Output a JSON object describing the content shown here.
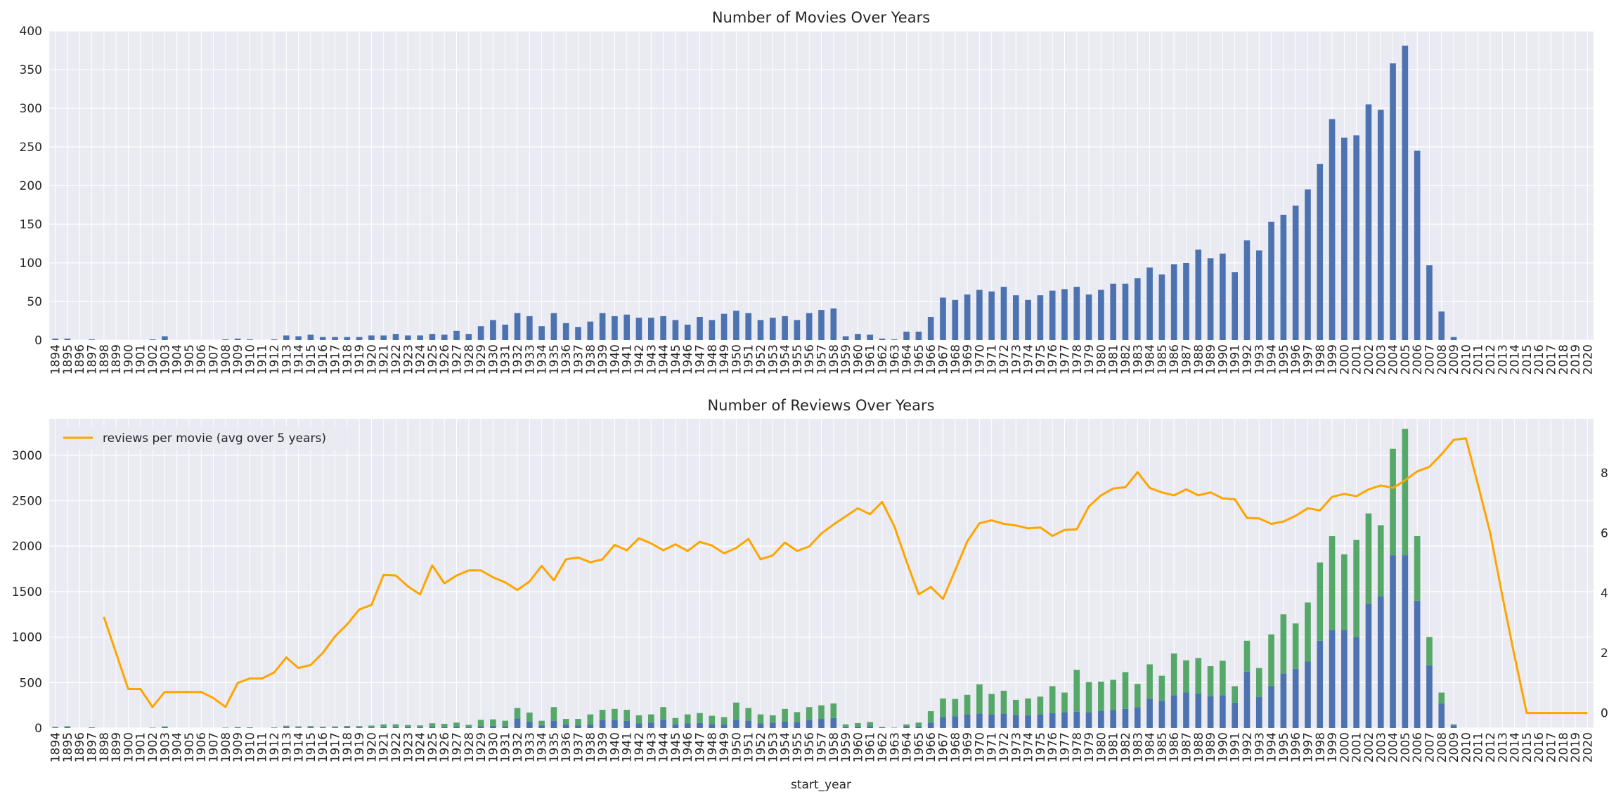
{
  "colors": {
    "background": "#eaeaf2",
    "blue": "#4c72b0",
    "green": "#55a868",
    "orange": "#ffa500",
    "grid": "#ffffff"
  },
  "chart_data": [
    {
      "type": "bar",
      "title": "Number of Movies Over Years",
      "xlabel": "",
      "ylabel": "",
      "ylim": [
        0,
        400
      ],
      "yticks": [
        0,
        50,
        100,
        150,
        200,
        250,
        300,
        350,
        400
      ],
      "grid": true,
      "x_start": 1894,
      "x_end": 2020,
      "values": [
        2,
        2,
        0,
        1,
        0,
        0,
        0,
        0,
        1,
        5,
        0,
        0,
        0,
        0,
        1,
        2,
        1,
        0,
        1,
        6,
        5,
        7,
        4,
        4,
        4,
        4,
        6,
        6,
        8,
        6,
        6,
        8,
        7,
        12,
        8,
        18,
        26,
        20,
        35,
        31,
        18,
        35,
        22,
        17,
        24,
        35,
        31,
        33,
        29,
        29,
        31,
        26,
        20,
        30,
        26,
        34,
        38,
        35,
        26,
        29,
        31,
        26,
        35,
        39,
        41,
        5,
        8,
        7,
        2,
        1,
        11,
        11,
        30,
        55,
        52,
        59,
        65,
        63,
        69,
        58,
        52,
        58,
        64,
        66,
        69,
        59,
        65,
        73,
        73,
        80,
        94,
        85,
        98,
        100,
        117,
        106,
        112,
        88,
        129,
        116,
        153,
        162,
        174,
        195,
        228,
        286,
        262,
        265,
        305,
        298,
        358,
        381,
        245,
        97,
        37,
        4,
        0,
        0,
        0,
        0,
        0,
        0,
        0,
        0,
        0,
        0,
        0
      ]
    },
    {
      "type": "bar",
      "stacked": true,
      "title": "Number of Reviews Over Years",
      "xlabel": "start_year",
      "ylabel": "",
      "ylim": [
        0,
        3400
      ],
      "yticks": [
        0,
        500,
        1000,
        1500,
        2000,
        2500,
        3000
      ],
      "grid": true,
      "x_start": 1894,
      "x_end": 2020,
      "series": [
        {
          "values": [
            5,
            8,
            0,
            3,
            0,
            0,
            0,
            0,
            2,
            8,
            0,
            0,
            0,
            0,
            2,
            5,
            3,
            0,
            2,
            10,
            6,
            7,
            5,
            6,
            8,
            7,
            7,
            10,
            11,
            8,
            9,
            12,
            11,
            15,
            10,
            20,
            25,
            20,
            105,
            70,
            30,
            80,
            40,
            30,
            40,
            90,
            85,
            80,
            50,
            60,
            95,
            40,
            50,
            55,
            45,
            40,
            90,
            80,
            50,
            60,
            70,
            65,
            85,
            100,
            110,
            10,
            15,
            20,
            4,
            2,
            20,
            20,
            60,
            120,
            130,
            150,
            160,
            150,
            160,
            145,
            140,
            150,
            165,
            170,
            180,
            170,
            190,
            200,
            210,
            230,
            320,
            300,
            360,
            390,
            380,
            350,
            360,
            280,
            620,
            340,
            460,
            600,
            650,
            730,
            960,
            1080,
            1080,
            1000,
            1370,
            1450,
            1900,
            1900,
            1400,
            690,
            270,
            30,
            0,
            0,
            0,
            0,
            0,
            0,
            0,
            0,
            0,
            0,
            0
          ]
        },
        {
          "values": [
            8,
            12,
            0,
            5,
            0,
            0,
            0,
            0,
            3,
            10,
            0,
            0,
            0,
            0,
            3,
            6,
            5,
            0,
            5,
            15,
            12,
            15,
            10,
            12,
            15,
            15,
            20,
            30,
            30,
            25,
            20,
            40,
            35,
            45,
            25,
            70,
            70,
            60,
            115,
            100,
            50,
            150,
            60,
            70,
            110,
            110,
            125,
            120,
            90,
            90,
            135,
            70,
            100,
            110,
            90,
            80,
            190,
            140,
            100,
            80,
            140,
            110,
            145,
            150,
            160,
            30,
            40,
            45,
            8,
            3,
            20,
            40,
            125,
            205,
            190,
            215,
            320,
            225,
            250,
            165,
            185,
            195,
            295,
            220,
            460,
            335,
            320,
            330,
            405,
            255,
            380,
            275,
            460,
            355,
            390,
            330,
            380,
            180,
            340,
            320,
            570,
            650,
            500,
            650,
            860,
            1030,
            830,
            1070,
            990,
            780,
            1170,
            1390,
            710,
            310,
            120,
            10,
            0,
            0,
            0,
            0,
            0,
            0,
            0,
            0,
            0,
            0,
            0
          ]
        }
      ],
      "secondary_axis": {
        "ylim": [
          -0.5,
          9.8
        ],
        "yticks": [
          0,
          2,
          4,
          6,
          8
        ]
      },
      "line": {
        "name": "reviews per movie (avg over 5 years)",
        "x": [
          1898,
          1899,
          1900,
          1901,
          1902,
          1903,
          1904,
          1905,
          1906,
          1907,
          1908,
          1909,
          1910,
          1911,
          1912,
          1913,
          1914,
          1915,
          1916,
          1917,
          1918,
          1919,
          1920,
          1921,
          1922,
          1923,
          1924,
          1925,
          1926,
          1927,
          1928,
          1929,
          1930,
          1931,
          1932,
          1933,
          1934,
          1935,
          1936,
          1937,
          1938,
          1939,
          1940,
          1941,
          1942,
          1943,
          1944,
          1945,
          1946,
          1947,
          1948,
          1949,
          1950,
          1951,
          1952,
          1953,
          1954,
          1955,
          1956,
          1957,
          1958,
          1959,
          1960,
          1961,
          1962,
          1963,
          1964,
          1965,
          1966,
          1967,
          1968,
          1969,
          1970,
          1971,
          1972,
          1973,
          1974,
          1975,
          1976,
          1977,
          1978,
          1979,
          1980,
          1981,
          1982,
          1983,
          1984,
          1985,
          1986,
          1987,
          1988,
          1989,
          1990,
          1991,
          1992,
          1993,
          1994,
          1995,
          1996,
          1997,
          1998,
          1999,
          2000,
          2001,
          2002,
          2003,
          2004,
          2005,
          2006,
          2007,
          2008,
          2009,
          2010,
          2011,
          2012,
          2013,
          2014,
          2015,
          2016,
          2017,
          2018,
          2019,
          2020
        ],
        "y": [
          3.2,
          2.0,
          0.8,
          0.8,
          0.2,
          0.7,
          0.7,
          0.7,
          0.7,
          0.5,
          0.2,
          1.0,
          1.15,
          1.15,
          1.35,
          1.85,
          1.5,
          1.6,
          2.0,
          2.55,
          2.95,
          3.45,
          3.6,
          4.6,
          4.58,
          4.22,
          3.95,
          4.92,
          4.32,
          4.58,
          4.75,
          4.75,
          4.52,
          4.35,
          4.1,
          4.38,
          4.9,
          4.42,
          5.12,
          5.18,
          5.02,
          5.12,
          5.6,
          5.42,
          5.82,
          5.65,
          5.42,
          5.62,
          5.4,
          5.7,
          5.58,
          5.32,
          5.5,
          5.8,
          5.12,
          5.25,
          5.68,
          5.4,
          5.55,
          5.98,
          6.28,
          6.55,
          6.82,
          6.62,
          7.03,
          6.22,
          5.05,
          3.95,
          4.2,
          3.8,
          4.75,
          5.72,
          6.32,
          6.42,
          6.3,
          6.25,
          6.15,
          6.18,
          5.9,
          6.1,
          6.12,
          6.88,
          7.25,
          7.48,
          7.52,
          8.02,
          7.5,
          7.35,
          7.25,
          7.45,
          7.25,
          7.35,
          7.15,
          7.12,
          6.5,
          6.48,
          6.3,
          6.38,
          6.57,
          6.82,
          6.75,
          7.2,
          7.3,
          7.22,
          7.45,
          7.58,
          7.5,
          7.75,
          8.05,
          8.2,
          8.62,
          9.1,
          9.15,
          7.6,
          6.0,
          3.9,
          1.9,
          0.0,
          0.0,
          0.0,
          0.0,
          0.0,
          0.0
        ]
      },
      "legend": {
        "placement": "top-left"
      }
    }
  ]
}
